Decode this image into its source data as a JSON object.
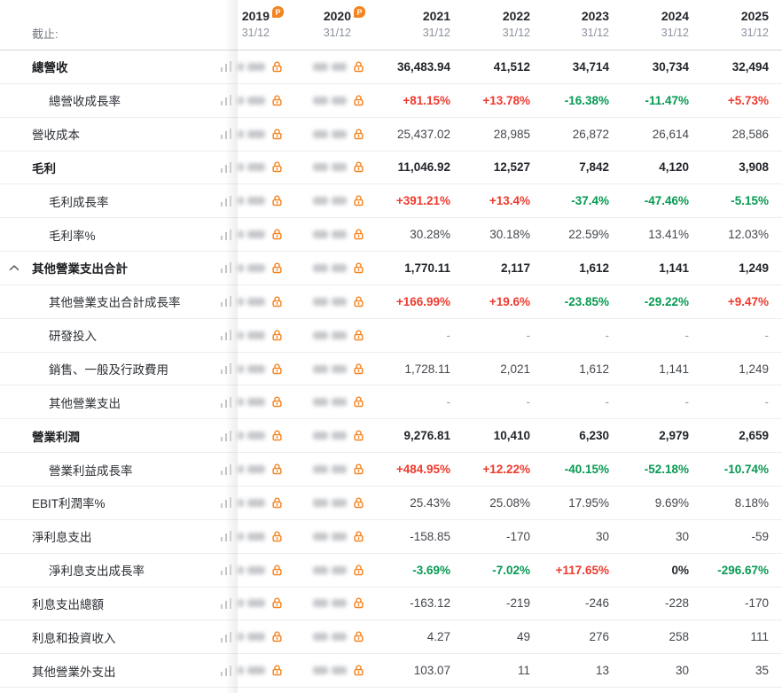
{
  "colors": {
    "positive_red": "#ef3a2e",
    "negative_green": "#079a52",
    "neutral_dark": "#24272c",
    "accent_orange": "#f5831f",
    "redacted_gray": "#a6a9ae"
  },
  "icons": {
    "premium_badge_text": "P",
    "lock": "lock-icon",
    "mini_chart": "mini-bar-chart-icon",
    "collapse": "chevron-up-icon"
  },
  "header": {
    "asof_label": "截止:",
    "columns": [
      {
        "year": "2019",
        "date": "31/12",
        "premium": true,
        "locked": true
      },
      {
        "year": "2020",
        "date": "31/12",
        "premium": true,
        "locked": true
      },
      {
        "year": "2021",
        "date": "31/12",
        "premium": false,
        "locked": false
      },
      {
        "year": "2022",
        "date": "31/12",
        "premium": false,
        "locked": false
      },
      {
        "year": "2023",
        "date": "31/12",
        "premium": false,
        "locked": false
      },
      {
        "year": "2024",
        "date": "31/12",
        "premium": false,
        "locked": false
      },
      {
        "year": "2025",
        "date": "31/12",
        "premium": false,
        "locked": false
      }
    ]
  },
  "rows": [
    {
      "label": "總營收",
      "bold": true,
      "indent": false,
      "chevron": false,
      "colored": false,
      "values": [
        "36,483.94",
        "41,512",
        "34,714",
        "30,734",
        "32,494"
      ]
    },
    {
      "label": "總營收成長率",
      "bold": false,
      "indent": true,
      "chevron": false,
      "colored": true,
      "values": [
        "+81.15%",
        "+13.78%",
        "-16.38%",
        "-11.47%",
        "+5.73%"
      ]
    },
    {
      "label": "營收成本",
      "bold": false,
      "indent": false,
      "chevron": false,
      "colored": false,
      "values": [
        "25,437.02",
        "28,985",
        "26,872",
        "26,614",
        "28,586"
      ]
    },
    {
      "label": "毛利",
      "bold": true,
      "indent": false,
      "chevron": false,
      "colored": false,
      "values": [
        "11,046.92",
        "12,527",
        "7,842",
        "4,120",
        "3,908"
      ]
    },
    {
      "label": "毛利成長率",
      "bold": false,
      "indent": true,
      "chevron": false,
      "colored": true,
      "values": [
        "+391.21%",
        "+13.4%",
        "-37.4%",
        "-47.46%",
        "-5.15%"
      ]
    },
    {
      "label": "毛利率%",
      "bold": false,
      "indent": true,
      "chevron": false,
      "colored": false,
      "values": [
        "30.28%",
        "30.18%",
        "22.59%",
        "13.41%",
        "12.03%"
      ]
    },
    {
      "label": "其他營業支出合計",
      "bold": true,
      "indent": false,
      "chevron": true,
      "colored": false,
      "values": [
        "1,770.11",
        "2,117",
        "1,612",
        "1,141",
        "1,249"
      ]
    },
    {
      "label": "其他營業支出合計成長率",
      "bold": false,
      "indent": true,
      "chevron": false,
      "colored": true,
      "values": [
        "+166.99%",
        "+19.6%",
        "-23.85%",
        "-29.22%",
        "+9.47%"
      ]
    },
    {
      "label": "研發投入",
      "bold": false,
      "indent": true,
      "chevron": false,
      "colored": false,
      "values": [
        "-",
        "-",
        "-",
        "-",
        "-"
      ]
    },
    {
      "label": "銷售、一般及行政費用",
      "bold": false,
      "indent": true,
      "chevron": false,
      "colored": false,
      "values": [
        "1,728.11",
        "2,021",
        "1,612",
        "1,141",
        "1,249"
      ]
    },
    {
      "label": "其他營業支出",
      "bold": false,
      "indent": true,
      "chevron": false,
      "colored": false,
      "values": [
        "-",
        "-",
        "-",
        "-",
        "-"
      ]
    },
    {
      "label": "營業利潤",
      "bold": true,
      "indent": false,
      "chevron": false,
      "colored": false,
      "values": [
        "9,276.81",
        "10,410",
        "6,230",
        "2,979",
        "2,659"
      ]
    },
    {
      "label": "營業利益成長率",
      "bold": false,
      "indent": true,
      "chevron": false,
      "colored": true,
      "values": [
        "+484.95%",
        "+12.22%",
        "-40.15%",
        "-52.18%",
        "-10.74%"
      ]
    },
    {
      "label": "EBIT利潤率%",
      "bold": false,
      "indent": false,
      "chevron": false,
      "colored": false,
      "values": [
        "25.43%",
        "25.08%",
        "17.95%",
        "9.69%",
        "8.18%"
      ]
    },
    {
      "label": "淨利息支出",
      "bold": false,
      "indent": false,
      "chevron": false,
      "colored": false,
      "values": [
        "-158.85",
        "-170",
        "30",
        "30",
        "-59"
      ]
    },
    {
      "label": "淨利息支出成長率",
      "bold": false,
      "indent": true,
      "chevron": false,
      "colored": true,
      "values": [
        "-3.69%",
        "-7.02%",
        "+117.65%",
        "0%",
        "-296.67%"
      ]
    },
    {
      "label": "利息支出總額",
      "bold": false,
      "indent": false,
      "chevron": false,
      "colored": false,
      "values": [
        "-163.12",
        "-219",
        "-246",
        "-228",
        "-170"
      ]
    },
    {
      "label": "利息和投資收入",
      "bold": false,
      "indent": false,
      "chevron": false,
      "colored": false,
      "values": [
        "4.27",
        "49",
        "276",
        "258",
        "111"
      ]
    },
    {
      "label": "其他營業外支出",
      "bold": false,
      "indent": false,
      "chevron": false,
      "colored": false,
      "values": [
        "103.07",
        "11",
        "13",
        "30",
        "35"
      ]
    }
  ]
}
